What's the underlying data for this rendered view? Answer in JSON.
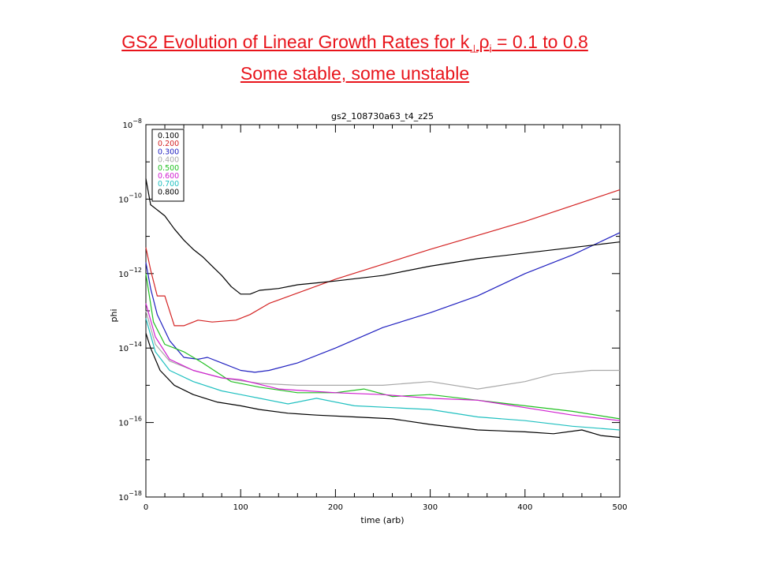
{
  "slide": {
    "title_prefix": "GS2 Evolution of Linear Growth Rates for k",
    "title_perp": "⊥",
    "title_rho": "ρ",
    "title_i": "i",
    "title_suffix": " = 0.1 to 0.8",
    "subtitle": "Some stable, some unstable"
  },
  "chart_data": {
    "type": "line",
    "title": "gs2_108730a63_t4_z25",
    "xlabel": "time (arb)",
    "ylabel": "phi",
    "xlim": [
      0,
      500
    ],
    "ylim_log10": [
      -18,
      -8
    ],
    "log_y": true,
    "grid": false,
    "legend_position": "top-left",
    "x_ticks": [
      0,
      100,
      200,
      300,
      400,
      500
    ],
    "x_tick_labels": [
      "0",
      "100",
      "200",
      "300",
      "400",
      "500"
    ],
    "y_ticks_log10": [
      -8,
      -10,
      -12,
      -14,
      -16,
      -18
    ],
    "y_tick_base": "10",
    "y_tick_exponents": [
      "−8",
      "−10",
      "−12",
      "−14",
      "−16",
      "−18"
    ],
    "series": [
      {
        "name": "0.100",
        "color": "#000000",
        "points": [
          [
            0,
            -13.6
          ],
          [
            5,
            -14.0
          ],
          [
            15,
            -14.6
          ],
          [
            30,
            -15.0
          ],
          [
            50,
            -15.25
          ],
          [
            75,
            -15.45
          ],
          [
            100,
            -15.55
          ],
          [
            120,
            -15.65
          ],
          [
            150,
            -15.75
          ],
          [
            180,
            -15.8
          ],
          [
            220,
            -15.85
          ],
          [
            260,
            -15.9
          ],
          [
            300,
            -16.05
          ],
          [
            350,
            -16.2
          ],
          [
            400,
            -16.25
          ],
          [
            430,
            -16.3
          ],
          [
            460,
            -16.2
          ],
          [
            480,
            -16.35
          ],
          [
            500,
            -16.4
          ]
        ]
      },
      {
        "name": "0.200",
        "color": "#d42424",
        "points": [
          [
            0,
            -11.3
          ],
          [
            5,
            -11.9
          ],
          [
            12,
            -12.6
          ],
          [
            20,
            -12.6
          ],
          [
            30,
            -13.4
          ],
          [
            40,
            -13.4
          ],
          [
            55,
            -13.25
          ],
          [
            70,
            -13.3
          ],
          [
            95,
            -13.25
          ],
          [
            110,
            -13.1
          ],
          [
            130,
            -12.8
          ],
          [
            200,
            -12.15
          ],
          [
            300,
            -11.35
          ],
          [
            400,
            -10.6
          ],
          [
            500,
            -9.75
          ]
        ]
      },
      {
        "name": "0.300",
        "color": "#2020c0",
        "points": [
          [
            0,
            -11.7
          ],
          [
            5,
            -12.4
          ],
          [
            12,
            -13.1
          ],
          [
            25,
            -13.8
          ],
          [
            40,
            -14.25
          ],
          [
            55,
            -14.3
          ],
          [
            65,
            -14.25
          ],
          [
            80,
            -14.4
          ],
          [
            100,
            -14.6
          ],
          [
            115,
            -14.65
          ],
          [
            130,
            -14.6
          ],
          [
            160,
            -14.4
          ],
          [
            200,
            -14.0
          ],
          [
            250,
            -13.45
          ],
          [
            300,
            -13.05
          ],
          [
            350,
            -12.6
          ],
          [
            400,
            -12.0
          ],
          [
            450,
            -11.5
          ],
          [
            500,
            -10.9
          ]
        ]
      },
      {
        "name": "0.400",
        "color": "#a8a8a8",
        "points": [
          [
            0,
            -13.0
          ],
          [
            10,
            -13.9
          ],
          [
            25,
            -14.35
          ],
          [
            50,
            -14.6
          ],
          [
            80,
            -14.8
          ],
          [
            120,
            -14.95
          ],
          [
            160,
            -15.0
          ],
          [
            200,
            -15.0
          ],
          [
            250,
            -15.0
          ],
          [
            300,
            -14.9
          ],
          [
            350,
            -15.1
          ],
          [
            400,
            -14.9
          ],
          [
            430,
            -14.7
          ],
          [
            470,
            -14.6
          ],
          [
            500,
            -14.6
          ]
        ]
      },
      {
        "name": "0.500",
        "color": "#22c022",
        "points": [
          [
            0,
            -12.0
          ],
          [
            8,
            -13.3
          ],
          [
            20,
            -13.9
          ],
          [
            40,
            -14.1
          ],
          [
            60,
            -14.4
          ],
          [
            90,
            -14.9
          ],
          [
            120,
            -15.05
          ],
          [
            160,
            -15.2
          ],
          [
            200,
            -15.2
          ],
          [
            230,
            -15.1
          ],
          [
            260,
            -15.3
          ],
          [
            300,
            -15.25
          ],
          [
            350,
            -15.4
          ],
          [
            400,
            -15.55
          ],
          [
            450,
            -15.7
          ],
          [
            500,
            -15.9
          ]
        ]
      },
      {
        "name": "0.600",
        "color": "#d020d0",
        "points": [
          [
            0,
            -12.8
          ],
          [
            10,
            -13.7
          ],
          [
            25,
            -14.3
          ],
          [
            50,
            -14.6
          ],
          [
            80,
            -14.8
          ],
          [
            100,
            -14.85
          ],
          [
            140,
            -15.1
          ],
          [
            200,
            -15.2
          ],
          [
            250,
            -15.25
          ],
          [
            300,
            -15.35
          ],
          [
            350,
            -15.4
          ],
          [
            400,
            -15.6
          ],
          [
            450,
            -15.8
          ],
          [
            500,
            -15.95
          ]
        ]
      },
      {
        "name": "0.700",
        "color": "#20c0c0",
        "points": [
          [
            0,
            -13.2
          ],
          [
            10,
            -14.1
          ],
          [
            25,
            -14.6
          ],
          [
            50,
            -14.9
          ],
          [
            80,
            -15.15
          ],
          [
            100,
            -15.25
          ],
          [
            120,
            -15.35
          ],
          [
            150,
            -15.5
          ],
          [
            180,
            -15.35
          ],
          [
            220,
            -15.55
          ],
          [
            260,
            -15.6
          ],
          [
            300,
            -15.65
          ],
          [
            350,
            -15.85
          ],
          [
            400,
            -15.95
          ],
          [
            450,
            -16.1
          ],
          [
            500,
            -16.2
          ]
        ]
      },
      {
        "name": "0.800",
        "color": "#000000",
        "points": [
          [
            0,
            -9.45
          ],
          [
            5,
            -10.15
          ],
          [
            10,
            -10.25
          ],
          [
            15,
            -10.35
          ],
          [
            20,
            -10.45
          ],
          [
            30,
            -10.8
          ],
          [
            40,
            -11.1
          ],
          [
            50,
            -11.35
          ],
          [
            60,
            -11.55
          ],
          [
            70,
            -11.8
          ],
          [
            80,
            -12.05
          ],
          [
            90,
            -12.35
          ],
          [
            100,
            -12.55
          ],
          [
            110,
            -12.55
          ],
          [
            120,
            -12.45
          ],
          [
            140,
            -12.4
          ],
          [
            160,
            -12.3
          ],
          [
            180,
            -12.25
          ],
          [
            200,
            -12.2
          ],
          [
            250,
            -12.05
          ],
          [
            300,
            -11.8
          ],
          [
            350,
            -11.6
          ],
          [
            400,
            -11.45
          ],
          [
            450,
            -11.3
          ],
          [
            500,
            -11.15
          ]
        ]
      }
    ]
  }
}
